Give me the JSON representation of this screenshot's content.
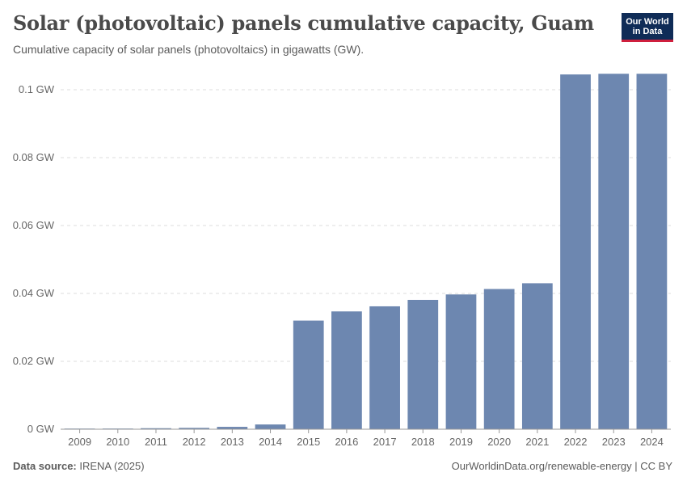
{
  "header": {
    "title": "Solar (photovoltaic) panels cumulative capacity, Guam",
    "subtitle": "Cumulative capacity of solar panels (photovoltaics) in gigawatts (GW).",
    "logo_line1": "Our World",
    "logo_line2": "in Data"
  },
  "footer": {
    "source_label": "Data source:",
    "source_value": "IRENA (2025)",
    "attribution": "OurWorldinData.org/renewable-energy | CC BY"
  },
  "colors": {
    "bar": "#6d87b0",
    "grid": "#dddddd",
    "axis": "#999999"
  },
  "chart_data": {
    "type": "bar",
    "title": "Solar (photovoltaic) panels cumulative capacity, Guam",
    "xlabel": "",
    "ylabel": "",
    "categories": [
      "2009",
      "2010",
      "2011",
      "2012",
      "2013",
      "2014",
      "2015",
      "2016",
      "2017",
      "2018",
      "2019",
      "2020",
      "2021",
      "2022",
      "2023",
      "2024"
    ],
    "values": [
      0.0001,
      0.0002,
      0.0003,
      0.0004,
      0.0007,
      0.0014,
      0.032,
      0.0347,
      0.0362,
      0.0381,
      0.0397,
      0.0413,
      0.043,
      0.1045,
      0.1047,
      0.1047
    ],
    "ylim": [
      0,
      0.1
    ],
    "yticks": [
      0,
      0.02,
      0.04,
      0.06,
      0.08,
      0.1
    ],
    "ytick_labels": [
      "0 GW",
      "0.02 GW",
      "0.04 GW",
      "0.06 GW",
      "0.08 GW",
      "0.1 GW"
    ],
    "grid": true
  }
}
